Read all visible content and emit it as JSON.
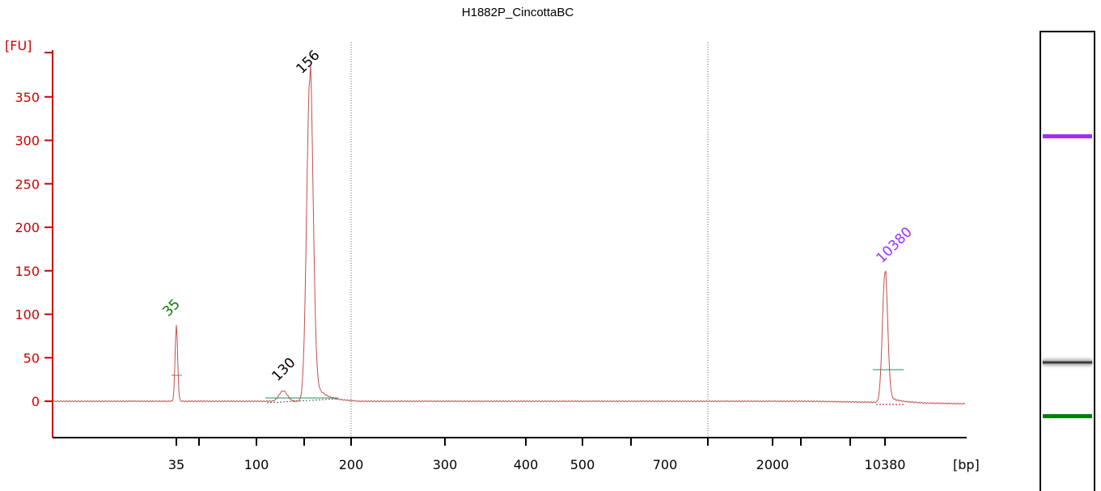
{
  "chart_data": {
    "type": "line",
    "title": "H1882P_CincottaBC",
    "ylabel": "[FU]",
    "xlabel": "[bp]",
    "ylim": [
      -40,
      380
    ],
    "y_ticks": [
      0,
      50,
      100,
      150,
      200,
      250,
      300,
      350
    ],
    "x_ticks": [
      "35",
      "100",
      "200",
      "300",
      "400",
      "500",
      "700",
      "2000",
      "10380"
    ],
    "x_scale": "nonlinear (ladder-calibrated size axis)",
    "grid": "dotted vertical lines at 200 and between 700 and 2000",
    "line_color": "#c0504d",
    "peaks": [
      {
        "label": "35",
        "x_bp": 35,
        "height_fu": 88,
        "label_color": "#008000"
      },
      {
        "label": "130",
        "x_bp": 130,
        "height_fu": 18,
        "label_color": "#000000"
      },
      {
        "label": "156",
        "x_bp": 156,
        "height_fu": 372,
        "label_color": "#000000"
      },
      {
        "label": "10380",
        "x_bp": 10380,
        "height_fu": 150,
        "label_color": "#9b30ff"
      }
    ]
  },
  "gel": {
    "bands": [
      {
        "label": "10380",
        "color": "#9b30ff"
      },
      {
        "label": "156",
        "color": "#1a1a1a"
      },
      {
        "label": "35",
        "color": "#008000"
      }
    ]
  }
}
